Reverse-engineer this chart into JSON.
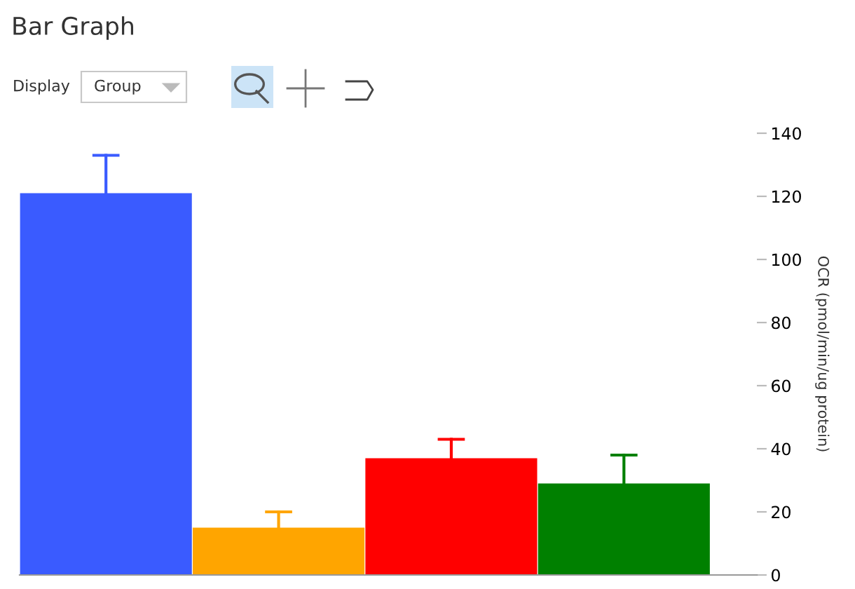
{
  "chart_data": {
    "type": "bar",
    "title": "Bar Graph",
    "annotations": [
      "Display",
      "Group"
    ],
    "categories": [
      null,
      null,
      null,
      null
    ],
    "colors": [
      "#3a5bff",
      "#ffa500",
      "#ff0000",
      "#008000"
    ],
    "values": [
      121,
      15,
      37,
      29
    ],
    "errors": [
      [
        121,
        133
      ],
      [
        15,
        20
      ],
      [
        37,
        43
      ],
      [
        29,
        38
      ]
    ],
    "ylabel": "OCR (pmol/min/ug protein)",
    "ylim": [
      0,
      140
    ],
    "yticks": [
      0,
      20,
      40,
      60,
      80,
      100,
      120,
      140
    ],
    "tick_labels": "y",
    "grid": false,
    "legend": false
  }
}
